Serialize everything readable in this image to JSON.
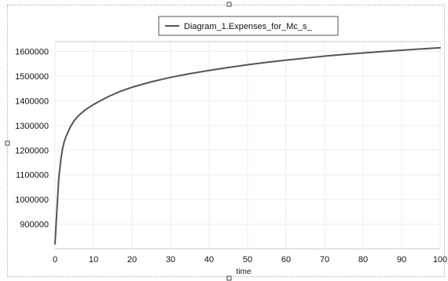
{
  "chart_data": {
    "type": "line",
    "title": "",
    "xlabel": "time",
    "ylabel": "",
    "xlim": [
      0,
      100
    ],
    "ylim": [
      800000,
      1640000
    ],
    "grid": true,
    "legend_placement": "top-center",
    "x_ticks": [
      0,
      10,
      20,
      30,
      40,
      50,
      60,
      70,
      80,
      90,
      100
    ],
    "y_ticks": [
      900000,
      1000000,
      1100000,
      1200000,
      1300000,
      1400000,
      1500000,
      1600000
    ],
    "series": [
      {
        "name": "Diagram_1.Expenses_for_Mc_s_",
        "color": "#555555",
        "x": [
          0,
          0.5,
          1,
          1.5,
          2,
          2.5,
          3,
          4,
          5,
          6,
          7,
          8,
          9,
          10,
          12,
          14,
          16,
          18,
          20,
          25,
          30,
          35,
          40,
          45,
          50,
          55,
          60,
          65,
          70,
          75,
          80,
          85,
          90,
          95,
          100
        ],
        "y": [
          820000,
          960000,
          1090000,
          1160000,
          1210000,
          1240000,
          1260000,
          1295000,
          1320000,
          1338000,
          1352000,
          1365000,
          1375000,
          1385000,
          1402000,
          1418000,
          1432000,
          1444000,
          1455000,
          1477000,
          1495000,
          1510000,
          1523000,
          1535000,
          1546000,
          1556000,
          1565000,
          1573000,
          1581000,
          1588000,
          1594000,
          1600000,
          1605000,
          1610000,
          1615000
        ]
      }
    ]
  }
}
